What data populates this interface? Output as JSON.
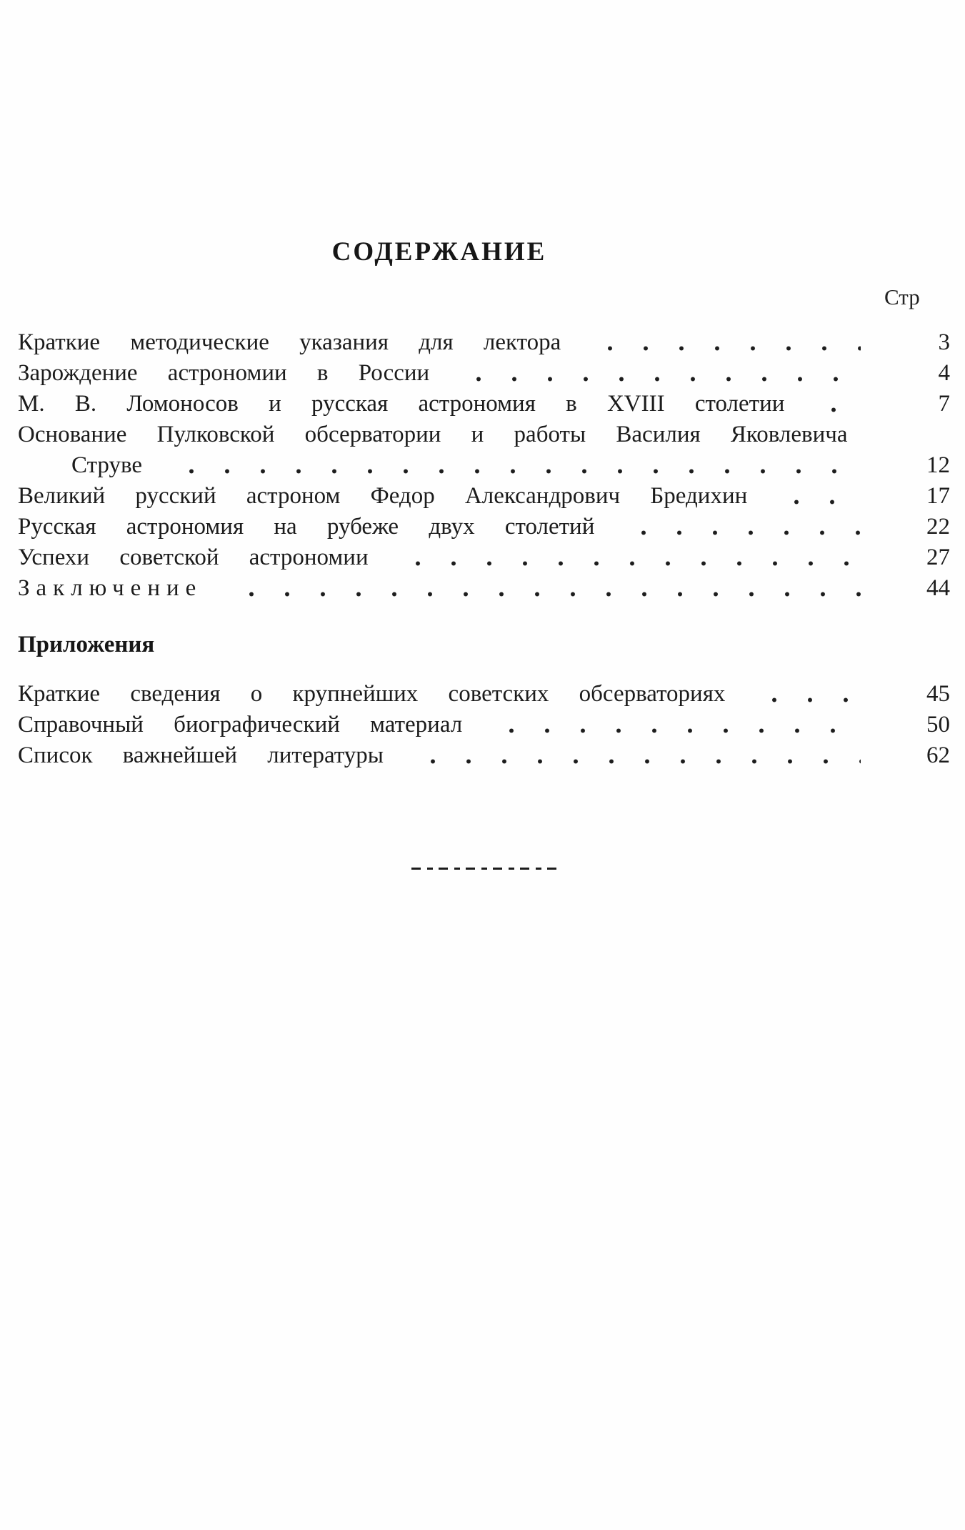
{
  "doc": {
    "title": "СОДЕРЖАНИЕ",
    "page_column_header": "Стр"
  },
  "toc": {
    "entries": [
      {
        "label": "Краткие методические указания для лектора",
        "page": "3"
      },
      {
        "label": "Зарождение астрономии в России",
        "page": "4"
      },
      {
        "label": "М. В. Ломоносов и русская астрономия в XVIII столетии",
        "page": "7"
      },
      {
        "label": "Основание Пулковской обсерватории и работы Василия Яковлевича",
        "page": ""
      },
      {
        "label": "Струве",
        "page": "12"
      },
      {
        "label": "Великий русский астроном Федор Александрович Бредихин",
        "page": "17"
      },
      {
        "label": "Русская астрономия на рубеже двух столетий",
        "page": "22"
      },
      {
        "label": "Успехи советской астрономии",
        "page": "27"
      },
      {
        "label": "Заключение",
        "page": "44"
      }
    ],
    "appendix_header": "Приложения",
    "appendix_entries": [
      {
        "label": "Краткие сведения о крупнейших советских обсерваториях",
        "page": "45"
      },
      {
        "label": "Справочный биографический материал",
        "page": "50"
      },
      {
        "label": "Список важнейшей литературы",
        "page": "62"
      }
    ]
  }
}
